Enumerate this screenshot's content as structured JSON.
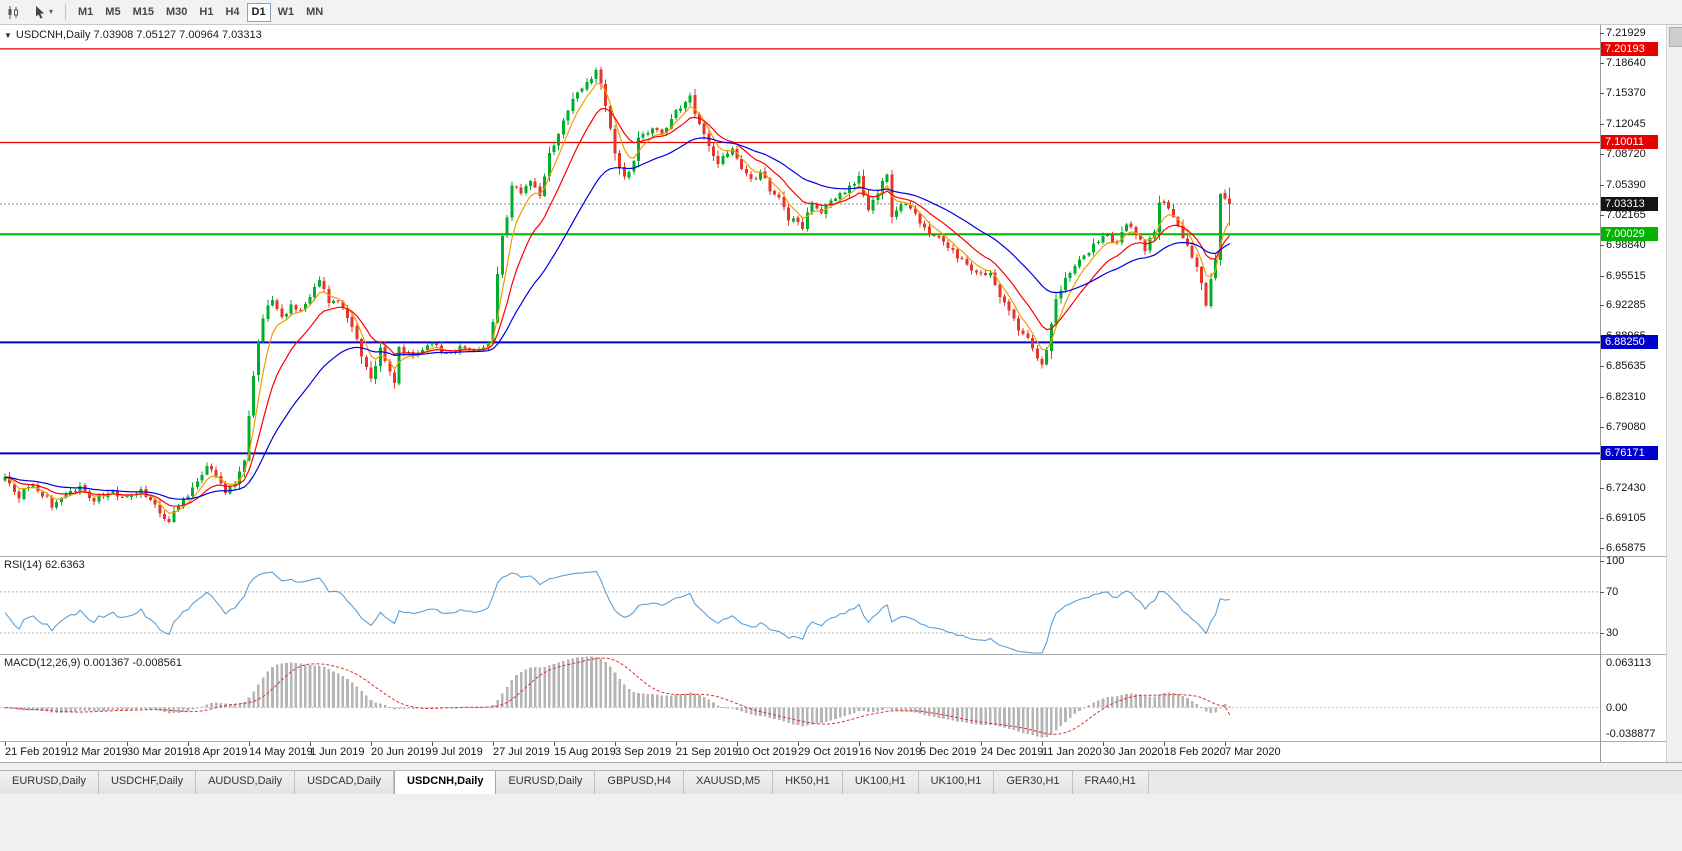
{
  "toolbar": {
    "timeframes": [
      {
        "label": "M1",
        "active": false
      },
      {
        "label": "M5",
        "active": false
      },
      {
        "label": "M15",
        "active": false
      },
      {
        "label": "M30",
        "active": false
      },
      {
        "label": "H1",
        "active": false
      },
      {
        "label": "H4",
        "active": false
      },
      {
        "label": "D1",
        "active": true
      },
      {
        "label": "W1",
        "active": false
      },
      {
        "label": "MN",
        "active": false
      }
    ]
  },
  "icons": {
    "title_dropdown": "▼",
    "cursor_dropdown": "▾"
  },
  "chart_data": {
    "type": "candlestick",
    "symbol": "USDCNH",
    "period": "Daily",
    "title": "USDCNH,Daily 7.03908 7.05127 7.00964 7.03313",
    "ohlc": {
      "open": 7.03908,
      "high": 7.05127,
      "low": 7.00964,
      "close": 7.03313
    },
    "y_ticks": [
      "7.21929",
      "7.18640",
      "7.15370",
      "7.12045",
      "7.08720",
      "7.05390",
      "7.02165",
      "6.98840",
      "6.95515",
      "6.92285",
      "6.88965",
      "6.85635",
      "6.82310",
      "6.79080",
      "6.75755",
      "6.72430",
      "6.69105",
      "6.65875"
    ],
    "x_labels": [
      "21 Feb 2019",
      "12 Mar 2019",
      "30 Mar 2019",
      "18 Apr 2019",
      "14 May 2019",
      "1 Jun 2019",
      "20 Jun 2019",
      "9 Jul 2019",
      "27 Jul 2019",
      "15 Aug 2019",
      "3 Sep 2019",
      "21 Sep 2019",
      "10 Oct 2019",
      "29 Oct 2019",
      "16 Nov 2019",
      "5 Dec 2019",
      "24 Dec 2019",
      "11 Jan 2020",
      "30 Jan 2020",
      "18 Feb 2020",
      "7 Mar 2020"
    ],
    "levels": [
      {
        "price": 7.20193,
        "label": "7.20193",
        "color": "#e60000",
        "width": 1.2
      },
      {
        "price": 7.10011,
        "label": "7.10011",
        "color": "#e60000",
        "width": 1.2
      },
      {
        "price": 7.00029,
        "label": "7.00029",
        "color": "#00b400",
        "width": 2
      },
      {
        "price": 6.8825,
        "label": "6.88250",
        "color": "#0000cd",
        "width": 2
      },
      {
        "price": 6.76171,
        "label": "6.76171",
        "color": "#0000cd",
        "width": 2
      }
    ],
    "current_price": {
      "value": 7.03313,
      "label": "7.03313",
      "badge_color": "#141414"
    },
    "candle_count": 262,
    "price_anchors": [
      [
        0,
        6.735
      ],
      [
        3,
        6.716
      ],
      [
        6,
        6.728
      ],
      [
        10,
        6.706
      ],
      [
        13,
        6.72
      ],
      [
        16,
        6.726
      ],
      [
        19,
        6.71
      ],
      [
        22,
        6.721
      ],
      [
        26,
        6.714
      ],
      [
        29,
        6.72
      ],
      [
        32,
        6.704
      ],
      [
        35,
        6.688
      ],
      [
        37,
        6.705
      ],
      [
        41,
        6.73
      ],
      [
        43,
        6.746
      ],
      [
        45,
        6.74
      ],
      [
        47,
        6.72
      ],
      [
        49,
        6.728
      ],
      [
        51,
        6.754
      ],
      [
        52,
        6.8
      ],
      [
        53,
        6.848
      ],
      [
        54,
        6.884
      ],
      [
        55,
        6.912
      ],
      [
        57,
        6.93
      ],
      [
        59,
        6.908
      ],
      [
        61,
        6.924
      ],
      [
        63,
        6.918
      ],
      [
        65,
        6.93
      ],
      [
        67,
        6.952
      ],
      [
        69,
        6.926
      ],
      [
        71,
        6.93
      ],
      [
        74,
        6.9
      ],
      [
        76,
        6.868
      ],
      [
        78,
        6.845
      ],
      [
        80,
        6.874
      ],
      [
        82,
        6.853
      ],
      [
        83,
        6.84
      ],
      [
        84,
        6.874
      ],
      [
        87,
        6.871
      ],
      [
        91,
        6.879
      ],
      [
        94,
        6.873
      ],
      [
        97,
        6.877
      ],
      [
        100,
        6.872
      ],
      [
        103,
        6.879
      ],
      [
        104,
        6.908
      ],
      [
        105,
        6.958
      ],
      [
        106,
        7.0
      ],
      [
        107,
        7.02
      ],
      [
        108,
        7.052
      ],
      [
        110,
        7.046
      ],
      [
        112,
        7.058
      ],
      [
        114,
        7.044
      ],
      [
        116,
        7.088
      ],
      [
        118,
        7.108
      ],
      [
        120,
        7.138
      ],
      [
        123,
        7.158
      ],
      [
        125,
        7.168
      ],
      [
        126,
        7.182
      ],
      [
        128,
        7.14
      ],
      [
        130,
        7.09
      ],
      [
        132,
        7.06
      ],
      [
        134,
        7.078
      ],
      [
        135,
        7.104
      ],
      [
        138,
        7.118
      ],
      [
        140,
        7.108
      ],
      [
        142,
        7.128
      ],
      [
        144,
        7.138
      ],
      [
        146,
        7.148
      ],
      [
        148,
        7.118
      ],
      [
        150,
        7.098
      ],
      [
        152,
        7.078
      ],
      [
        155,
        7.093
      ],
      [
        157,
        7.068
      ],
      [
        159,
        7.058
      ],
      [
        161,
        7.068
      ],
      [
        163,
        7.048
      ],
      [
        165,
        7.038
      ],
      [
        167,
        7.018
      ],
      [
        170,
        7.008
      ],
      [
        172,
        7.034
      ],
      [
        174,
        7.024
      ],
      [
        176,
        7.038
      ],
      [
        178,
        7.044
      ],
      [
        180,
        7.052
      ],
      [
        182,
        7.064
      ],
      [
        184,
        7.028
      ],
      [
        186,
        7.044
      ],
      [
        188,
        7.068
      ],
      [
        189,
        7.022
      ],
      [
        191,
        7.034
      ],
      [
        193,
        7.028
      ],
      [
        195,
        7.014
      ],
      [
        197,
        6.999
      ],
      [
        199,
        6.994
      ],
      [
        201,
        6.984
      ],
      [
        204,
        6.974
      ],
      [
        206,
        6.964
      ],
      [
        208,
        6.954
      ],
      [
        210,
        6.959
      ],
      [
        212,
        6.934
      ],
      [
        214,
        6.918
      ],
      [
        216,
        6.898
      ],
      [
        219,
        6.878
      ],
      [
        221,
        6.857
      ],
      [
        222,
        6.874
      ],
      [
        224,
        6.928
      ],
      [
        226,
        6.954
      ],
      [
        228,
        6.968
      ],
      [
        230,
        6.978
      ],
      [
        232,
        6.988
      ],
      [
        234,
        6.999
      ],
      [
        237,
        6.989
      ],
      [
        239,
        7.014
      ],
      [
        241,
        6.999
      ],
      [
        243,
        6.984
      ],
      [
        245,
        7.004
      ],
      [
        246,
        7.038
      ],
      [
        248,
        7.028
      ],
      [
        250,
        7.008
      ],
      [
        253,
        6.978
      ],
      [
        255,
        6.948
      ],
      [
        256,
        6.924
      ],
      [
        257,
        6.954
      ],
      [
        258,
        6.974
      ],
      [
        259,
        7.044
      ],
      [
        260,
        7.039
      ],
      [
        261,
        7.03313
      ]
    ],
    "colors": {
      "up": "#00ad2e",
      "down": "#e6352b",
      "ma_fast": "#f09e00",
      "ma_mid": "#ff0000",
      "ma_slow": "#0000e0",
      "rsi": "#57a0dc",
      "macd_hist": "#b5b5b5",
      "macd_signal": "#e03030",
      "price_line": "#8c8c8c"
    },
    "moving_averages": [
      {
        "period": 5,
        "color_key": "ma_fast"
      },
      {
        "period": 12,
        "color_key": "ma_mid"
      },
      {
        "period": 30,
        "color_key": "ma_slow"
      }
    ],
    "indicators": {
      "rsi": {
        "label": "RSI(14) 62.6363",
        "period": 14,
        "value": 62.6363,
        "axis_ticks": [
          "100",
          "70",
          "30"
        ],
        "level_lines": [
          70,
          30
        ]
      },
      "macd": {
        "label": "MACD(12,26,9) 0.001367 -0.008561",
        "fast": 12,
        "slow": 26,
        "smoothing": 9,
        "value_main": 0.001367,
        "value_signal": -0.008561,
        "axis_max": "0.063113",
        "axis_zero": "0.00",
        "axis_min": "-0.038877",
        "scale": {
          "max": 0.063113,
          "min": -0.038877
        }
      }
    }
  },
  "tabs": [
    {
      "label": "EURUSD,Daily",
      "active": false
    },
    {
      "label": "USDCHF,Daily",
      "active": false
    },
    {
      "label": "AUDUSD,Daily",
      "active": false
    },
    {
      "label": "USDCAD,Daily",
      "active": false
    },
    {
      "label": "USDCNH,Daily",
      "active": true
    },
    {
      "label": "EURUSD,Daily",
      "active": false
    },
    {
      "label": "GBPUSD,H4",
      "active": false
    },
    {
      "label": "XAUUSD,M5",
      "active": false
    },
    {
      "label": "HK50,H1",
      "active": false
    },
    {
      "label": "UK100,H1",
      "active": false
    },
    {
      "label": "UK100,H1",
      "active": false
    },
    {
      "label": "GER30,H1",
      "active": false
    },
    {
      "label": "FRA40,H1",
      "active": false
    }
  ]
}
